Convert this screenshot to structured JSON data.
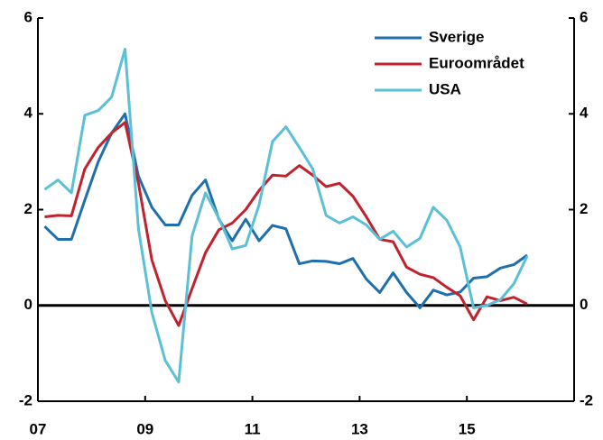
{
  "chart_data": {
    "type": "line",
    "x": [
      2007.125,
      2007.375,
      2007.625,
      2007.875,
      2008.125,
      2008.375,
      2008.625,
      2008.875,
      2009.125,
      2009.375,
      2009.625,
      2009.875,
      2010.125,
      2010.375,
      2010.625,
      2010.875,
      2011.125,
      2011.375,
      2011.625,
      2011.875,
      2012.125,
      2012.375,
      2012.625,
      2012.875,
      2013.125,
      2013.375,
      2013.625,
      2013.875,
      2014.125,
      2014.375,
      2014.625,
      2014.875,
      2015.125,
      2015.375,
      2015.625,
      2015.875,
      2016.125
    ],
    "series": [
      {
        "name": "Sverige",
        "color": "#1f6fad",
        "values": [
          1.65,
          1.38,
          1.38,
          2.2,
          3.0,
          3.6,
          4.0,
          2.7,
          2.05,
          1.68,
          1.68,
          2.3,
          2.62,
          1.8,
          1.35,
          1.8,
          1.35,
          1.67,
          1.6,
          0.87,
          0.93,
          0.92,
          0.87,
          0.98,
          0.55,
          0.27,
          0.68,
          0.27,
          -0.05,
          0.32,
          0.22,
          0.28,
          0.57,
          0.6,
          0.78,
          0.85,
          1.05
        ]
      },
      {
        "name": "Euroområdet",
        "color": "#c0222e",
        "values": [
          1.85,
          1.88,
          1.87,
          2.85,
          3.3,
          3.6,
          3.82,
          2.55,
          0.95,
          0.1,
          -0.42,
          0.35,
          1.1,
          1.58,
          1.72,
          2.0,
          2.4,
          2.72,
          2.7,
          2.92,
          2.72,
          2.48,
          2.55,
          2.28,
          1.85,
          1.38,
          1.33,
          0.8,
          0.65,
          0.58,
          0.38,
          0.2,
          -0.3,
          0.18,
          0.1,
          0.17,
          0.03
        ]
      },
      {
        "name": "USA",
        "color": "#5bc0d6",
        "values": [
          2.42,
          2.62,
          2.35,
          3.97,
          4.07,
          4.35,
          5.35,
          1.6,
          -0.15,
          -1.15,
          -1.6,
          1.45,
          2.35,
          1.82,
          1.18,
          1.25,
          2.1,
          3.42,
          3.73,
          3.3,
          2.85,
          1.88,
          1.72,
          1.85,
          1.68,
          1.38,
          1.55,
          1.22,
          1.4,
          2.05,
          1.78,
          1.22,
          -0.05,
          0.0,
          0.12,
          0.45,
          1.03
        ]
      }
    ],
    "xlim": [
      2007,
      2017
    ],
    "xticks": [
      {
        "value": 2007,
        "label": "07"
      },
      {
        "value": 2009,
        "label": "09"
      },
      {
        "value": 2011,
        "label": "11"
      },
      {
        "value": 2013,
        "label": "13"
      },
      {
        "value": 2015,
        "label": "15"
      }
    ],
    "ylim": [
      -2,
      6
    ],
    "yticks": [
      -2,
      0,
      2,
      4,
      6
    ],
    "y2lim": [
      -2,
      6
    ],
    "y2ticks": [
      -2,
      0,
      2,
      4,
      6
    ],
    "legend": "top-right"
  }
}
